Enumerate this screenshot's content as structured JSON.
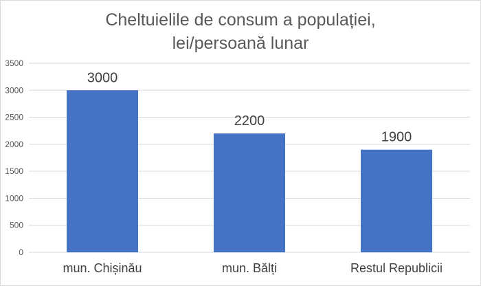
{
  "chart_data": {
    "type": "bar",
    "title_lines": [
      "Cheltuielile de consum a populației,",
      "lei/persoană lunar"
    ],
    "categories": [
      "mun. Chișinău",
      "mun. Bălți",
      "Restul Republicii"
    ],
    "values": [
      3000,
      2200,
      1900
    ],
    "data_labels": [
      "3000",
      "2200",
      "1900"
    ],
    "y_ticks": [
      0,
      500,
      1000,
      1500,
      2000,
      2500,
      3000,
      3500
    ],
    "ylim": [
      0,
      3500
    ],
    "grid": true,
    "legend": "none",
    "bar_color": "#4472c4",
    "grid_color": "#d9d9d9"
  }
}
